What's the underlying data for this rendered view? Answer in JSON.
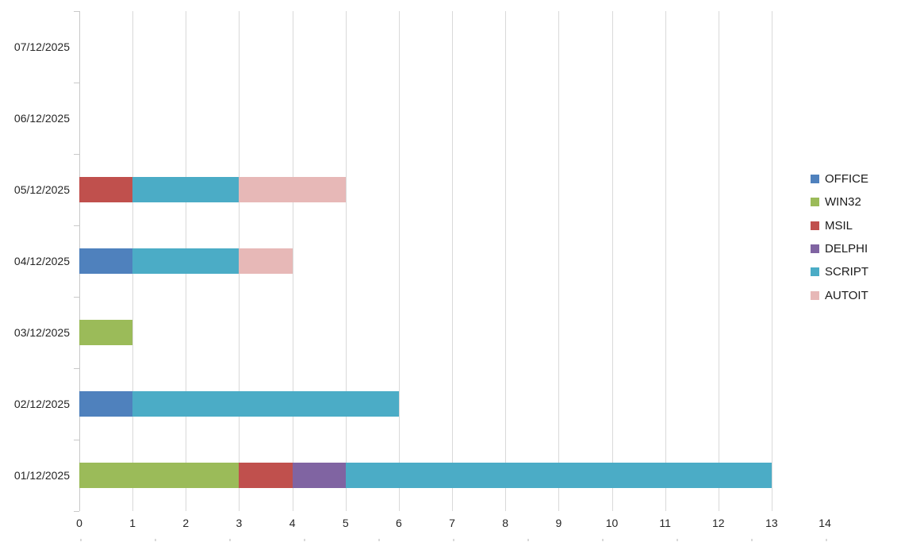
{
  "chart_data": {
    "type": "bar",
    "orientation": "horizontal",
    "stacked": true,
    "title": "",
    "categories": [
      "07/12/2025",
      "06/12/2025",
      "05/12/2025",
      "04/12/2025",
      "03/12/2025",
      "02/12/2025",
      "01/12/2025"
    ],
    "series": [
      {
        "name": "OFFICE",
        "color": "#4F81BD",
        "values": [
          0,
          0,
          0,
          1,
          0,
          1,
          0
        ]
      },
      {
        "name": "WIN32",
        "color": "#9BBB59",
        "values": [
          0,
          0,
          0,
          0,
          1,
          0,
          3
        ]
      },
      {
        "name": "MSIL",
        "color": "#C0504D",
        "values": [
          0,
          0,
          1,
          0,
          0,
          0,
          1
        ]
      },
      {
        "name": "DELPHI",
        "color": "#8064A2",
        "values": [
          0,
          0,
          0,
          0,
          0,
          0,
          1
        ]
      },
      {
        "name": "SCRIPT",
        "color": "#4BACC6",
        "values": [
          0,
          0,
          2,
          2,
          0,
          5,
          8
        ]
      },
      {
        "name": "AUTOIT",
        "color": "#E7B8B7",
        "values": [
          0,
          0,
          2,
          1,
          0,
          0,
          0
        ]
      }
    ],
    "x_axis": {
      "min": 0,
      "max": 14,
      "tick_step": 1,
      "tick_labels": [
        "0",
        "1",
        "2",
        "3",
        "4",
        "5",
        "6",
        "7",
        "8",
        "9",
        "10",
        "11",
        "12",
        "13",
        "14"
      ],
      "gridline_max": 13
    },
    "y_axis": {
      "label": ""
    },
    "legend": {
      "position": "right",
      "entries": [
        "OFFICE",
        "WIN32",
        "MSIL",
        "DELPHI",
        "SCRIPT",
        "AUTOIT"
      ]
    },
    "grid": "vertical"
  },
  "styles": {
    "background": "#FFFFFF",
    "gridline_color": "#D9D9D9",
    "axis_color": "#C9C9C9",
    "text_color": "#262626",
    "legend_text_color": "#1A1A1A"
  }
}
